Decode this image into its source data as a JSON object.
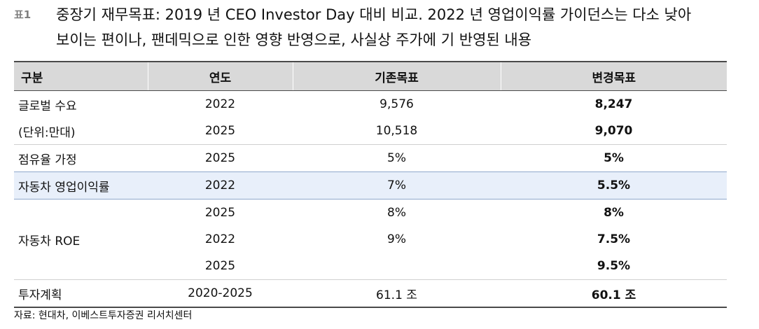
{
  "caption": {
    "label": "표1",
    "line1": "중장기 재무목표: 2019 년 CEO Investor Day 대비 비교. 2022 년 영업이익률 가이던스는 다소 낮아",
    "line2": "보이는 편이나, 팬데믹으로 인한 영향 반영으로, 사실상 주가에 기 반영된 내용"
  },
  "table": {
    "headers": [
      "구분",
      "연도",
      "기존목표",
      "변경목표"
    ],
    "groups": {
      "global_demand_1": "글로벌 수요",
      "global_demand_2": "(단위:만대)",
      "share": "점유율 가정",
      "margin": "자동차 영업이익률",
      "roe": "자동차 ROE",
      "invest": "투자계획"
    },
    "rows": [
      {
        "year": "2022",
        "old": "9,576",
        "new": "8,247"
      },
      {
        "year": "2025",
        "old": "10,518",
        "new": "9,070"
      },
      {
        "year": "2025",
        "old": "5%",
        "new": "5%"
      },
      {
        "year": "2022",
        "old": "7%",
        "new": "5.5%"
      },
      {
        "year": "2025",
        "old": "8%",
        "new": "8%"
      },
      {
        "year": "2022",
        "old": "9%",
        "new": "7.5%"
      },
      {
        "year": "2025",
        "old": "",
        "new": "9.5%"
      },
      {
        "year": "2020-2025",
        "old": "61.1 조",
        "new": "60.1 조"
      }
    ]
  },
  "source": "자료: 현대차, 이베스트투자증권 리서치센터"
}
